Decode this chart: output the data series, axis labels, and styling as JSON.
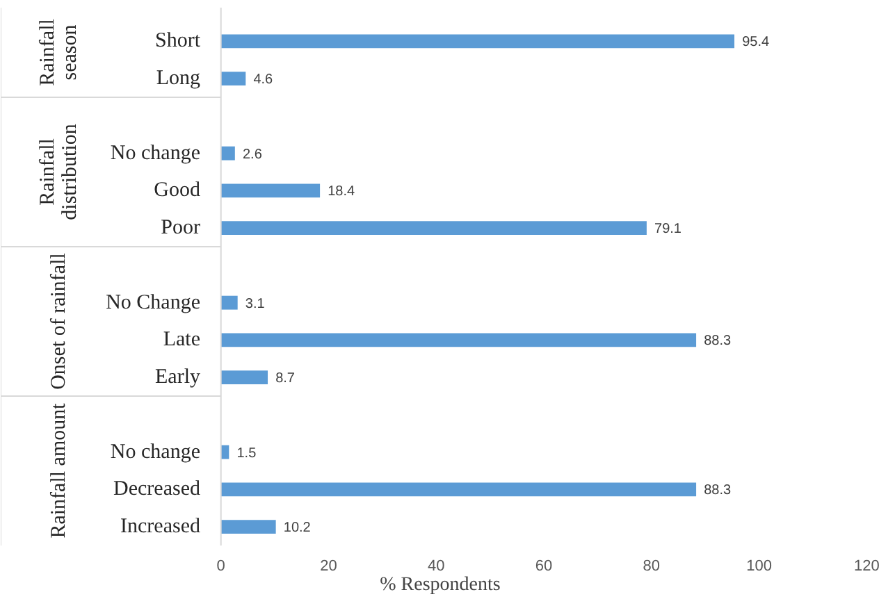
{
  "chart_data": {
    "type": "bar",
    "orientation": "horizontal",
    "xlabel": "% Respondents",
    "categories": [
      "Short",
      "Long",
      null,
      "No change",
      "Good",
      "Poor",
      null,
      "No Change",
      "Late",
      "Early",
      null,
      "No change",
      "Decreased",
      "Increased"
    ],
    "values": [
      95.4,
      4.6,
      null,
      2.6,
      18.4,
      79.1,
      null,
      3.1,
      88.3,
      8.7,
      null,
      1.5,
      88.3,
      10.2
    ],
    "color": "#5b9bd5",
    "xlim": [
      0,
      120
    ],
    "xticks": [
      0,
      20,
      40,
      60,
      80,
      100,
      120
    ],
    "grid": false,
    "data_labels": true,
    "annotations": [
      "Rainfall\nseason",
      "Rainfall\ndistribution",
      "Onset of rainfall",
      "Rainfall amount"
    ]
  }
}
